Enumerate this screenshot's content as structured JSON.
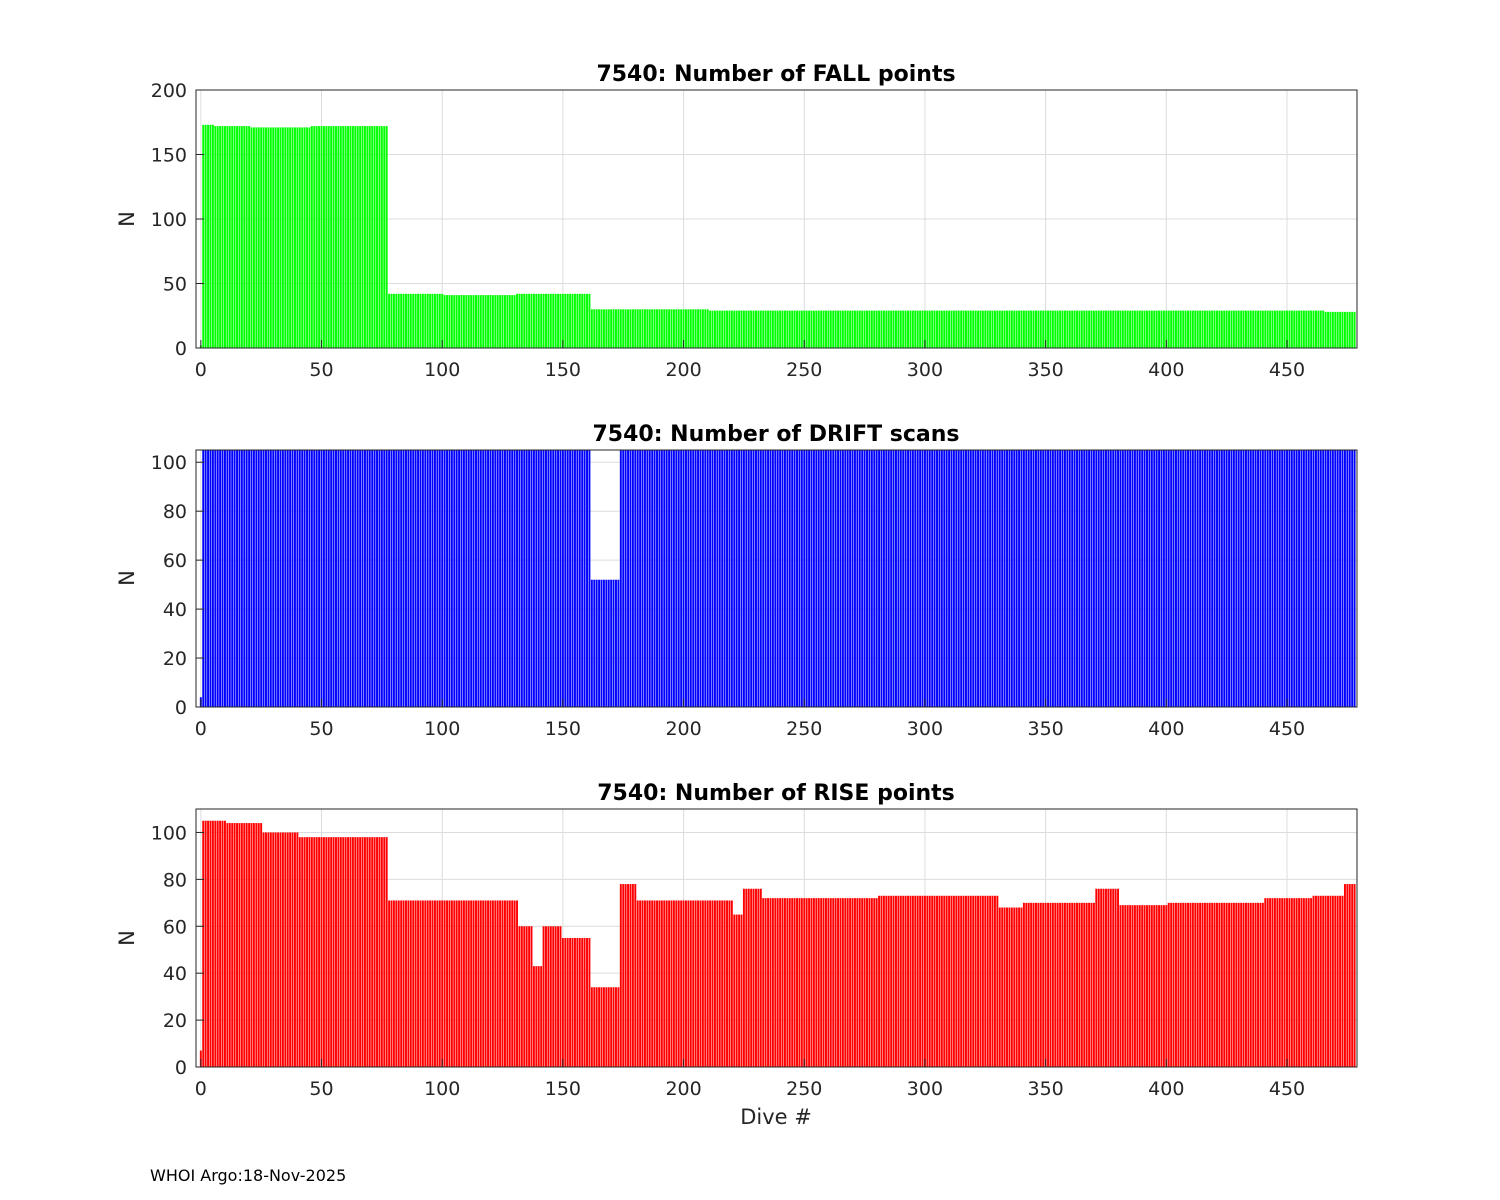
{
  "footer": "WHOI Argo:18-Nov-2025",
  "chart_data": [
    {
      "type": "bar",
      "title": "7540: Number of FALL points",
      "xlabel": "",
      "ylabel": "N",
      "xlim": [
        -2,
        479
      ],
      "ylim": [
        0,
        200
      ],
      "xticks": [
        0,
        50,
        100,
        150,
        200,
        250,
        300,
        350,
        400,
        450
      ],
      "yticks": [
        0,
        50,
        100,
        150,
        200
      ],
      "color": "#00ff00",
      "segments": [
        {
          "from": 0,
          "to": 0,
          "value": 2
        },
        {
          "from": 1,
          "to": 5,
          "value": 173
        },
        {
          "from": 6,
          "to": 20,
          "value": 172
        },
        {
          "from": 21,
          "to": 45,
          "value": 171
        },
        {
          "from": 46,
          "to": 55,
          "value": 172
        },
        {
          "from": 56,
          "to": 77,
          "value": 172
        },
        {
          "from": 78,
          "to": 100,
          "value": 42
        },
        {
          "from": 101,
          "to": 130,
          "value": 41
        },
        {
          "from": 131,
          "to": 161,
          "value": 42
        },
        {
          "from": 162,
          "to": 210,
          "value": 30
        },
        {
          "from": 211,
          "to": 420,
          "value": 29
        },
        {
          "from": 421,
          "to": 465,
          "value": 29
        },
        {
          "from": 466,
          "to": 478,
          "value": 28
        }
      ]
    },
    {
      "type": "bar",
      "title": "7540: Number of DRIFT scans",
      "xlabel": "",
      "ylabel": "N",
      "xlim": [
        -2,
        479
      ],
      "ylim": [
        0,
        105
      ],
      "xticks": [
        0,
        50,
        100,
        150,
        200,
        250,
        300,
        350,
        400,
        450
      ],
      "yticks": [
        0,
        20,
        40,
        60,
        80,
        100
      ],
      "color": "#0000ff",
      "segments": [
        {
          "from": 0,
          "to": 0,
          "value": 4
        },
        {
          "from": 1,
          "to": 161,
          "value": 105
        },
        {
          "from": 162,
          "to": 173,
          "value": 52
        },
        {
          "from": 174,
          "to": 478,
          "value": 105
        }
      ]
    },
    {
      "type": "bar",
      "title": "7540: Number of RISE points",
      "xlabel": "Dive #",
      "ylabel": "N",
      "xlim": [
        -2,
        479
      ],
      "ylim": [
        0,
        110
      ],
      "xticks": [
        0,
        50,
        100,
        150,
        200,
        250,
        300,
        350,
        400,
        450
      ],
      "yticks": [
        0,
        20,
        40,
        60,
        80,
        100
      ],
      "color": "#ff0000",
      "segments": [
        {
          "from": 0,
          "to": 0,
          "value": 7
        },
        {
          "from": 1,
          "to": 10,
          "value": 105
        },
        {
          "from": 11,
          "to": 25,
          "value": 104
        },
        {
          "from": 26,
          "to": 40,
          "value": 100
        },
        {
          "from": 41,
          "to": 55,
          "value": 98
        },
        {
          "from": 56,
          "to": 77,
          "value": 98
        },
        {
          "from": 78,
          "to": 131,
          "value": 71
        },
        {
          "from": 132,
          "to": 137,
          "value": 60
        },
        {
          "from": 138,
          "to": 141,
          "value": 43
        },
        {
          "from": 142,
          "to": 149,
          "value": 60
        },
        {
          "from": 150,
          "to": 161,
          "value": 55
        },
        {
          "from": 162,
          "to": 173,
          "value": 34
        },
        {
          "from": 174,
          "to": 180,
          "value": 78
        },
        {
          "from": 181,
          "to": 220,
          "value": 71
        },
        {
          "from": 221,
          "to": 224,
          "value": 65
        },
        {
          "from": 225,
          "to": 232,
          "value": 76
        },
        {
          "from": 233,
          "to": 280,
          "value": 72
        },
        {
          "from": 281,
          "to": 330,
          "value": 73
        },
        {
          "from": 331,
          "to": 340,
          "value": 68
        },
        {
          "from": 341,
          "to": 370,
          "value": 70
        },
        {
          "from": 371,
          "to": 380,
          "value": 76
        },
        {
          "from": 381,
          "to": 400,
          "value": 69
        },
        {
          "from": 401,
          "to": 440,
          "value": 70
        },
        {
          "from": 441,
          "to": 460,
          "value": 72
        },
        {
          "from": 461,
          "to": 473,
          "value": 73
        },
        {
          "from": 474,
          "to": 478,
          "value": 78
        }
      ]
    }
  ]
}
